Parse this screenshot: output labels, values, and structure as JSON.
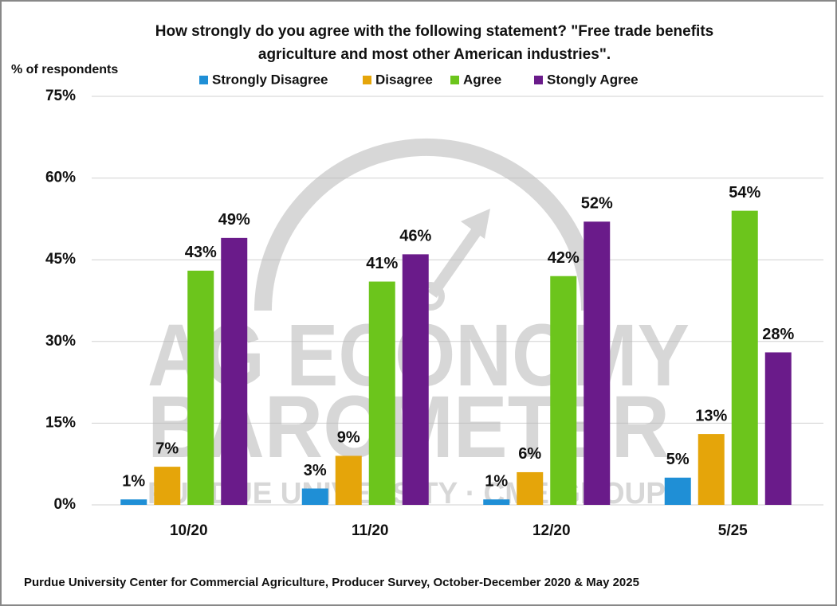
{
  "chart_data": {
    "type": "bar",
    "title": [
      "How strongly do you agree with the following statement?  \"Free trade benefits",
      "agriculture and most other American industries\"."
    ],
    "y_label": "% of respondents",
    "source": "Purdue University Center for Commercial Agriculture, Producer Survey, October-December 2020 & May 2025",
    "watermark": [
      "AG ECONOMY",
      "BAROMETER",
      "PURDUE UNIVERSITY · CME GROUP"
    ],
    "categories": [
      "10/20",
      "11/20",
      "12/20",
      "5/25"
    ],
    "series": [
      {
        "name": "Strongly Disagree",
        "color": "#1f8fd6",
        "values": [
          1,
          3,
          1,
          5
        ],
        "value_labels": [
          "1%",
          "3%",
          "1%",
          "5%"
        ]
      },
      {
        "name": "Disagree",
        "color": "#e5a50a",
        "values": [
          7,
          9,
          6,
          13
        ],
        "value_labels": [
          "7%",
          "9%",
          "6%",
          "13%"
        ]
      },
      {
        "name": "Agree",
        "color": "#6cc51c",
        "values": [
          43,
          41,
          42,
          54
        ],
        "value_labels": [
          "43%",
          "41%",
          "42%",
          "54%"
        ]
      },
      {
        "name": "Stongly Agree",
        "color": "#6a1b8a",
        "values": [
          49,
          46,
          52,
          28
        ],
        "value_labels": [
          "49%",
          "46%",
          "52%",
          "28%"
        ]
      }
    ],
    "ylim": [
      0,
      75
    ],
    "yticks": [
      {
        "value": 0,
        "label": "0%"
      },
      {
        "value": 15,
        "label": "15%"
      },
      {
        "value": 30,
        "label": "30%"
      },
      {
        "value": 45,
        "label": "45%"
      },
      {
        "value": 60,
        "label": "60%"
      },
      {
        "value": 75,
        "label": "75%"
      }
    ],
    "grid": true
  }
}
